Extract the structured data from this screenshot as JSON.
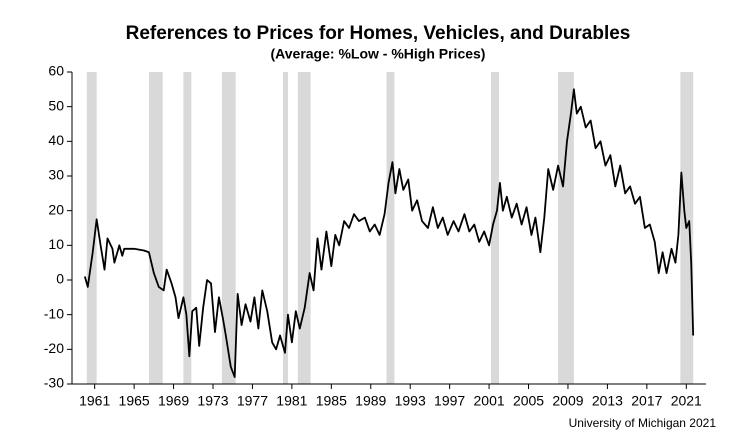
{
  "chart_data": {
    "type": "line",
    "title": "References to Prices for Homes, Vehicles, and Durables",
    "subtitle": "(Average:  %Low - %High Prices)",
    "source": "University of Michigan 2021",
    "xlim": [
      1958.7,
      2023
    ],
    "xticks": [
      1961,
      1965,
      1969,
      1973,
      1977,
      1981,
      1985,
      1989,
      1993,
      1997,
      2001,
      2005,
      2009,
      2013,
      2017,
      2021
    ],
    "ylim": [
      -30,
      60
    ],
    "yticks": [
      -30,
      -20,
      -10,
      0,
      10,
      20,
      30,
      40,
      50,
      60
    ],
    "grid": false,
    "shade_color": "#d9d9d9",
    "shaded_periods": [
      [
        1960.2,
        1961.2
      ],
      [
        1966.5,
        1967.9
      ],
      [
        1970.0,
        1970.8
      ],
      [
        1973.9,
        1975.3
      ],
      [
        1980.1,
        1980.6
      ],
      [
        1981.6,
        1982.9
      ],
      [
        1990.6,
        1991.4
      ],
      [
        2001.2,
        2002.0
      ],
      [
        2008.0,
        2009.6
      ],
      [
        2020.4,
        2021.7
      ]
    ],
    "series": [
      {
        "color": "#000000",
        "x": [
          1960.0,
          1960.3,
          1960.8,
          1961.2,
          1961.6,
          1962.0,
          1962.3,
          1962.8,
          1963.0,
          1963.5,
          1963.8,
          1964.0,
          1965.0,
          1966.0,
          1966.5,
          1967.0,
          1967.5,
          1968.0,
          1968.3,
          1968.8,
          1969.2,
          1969.5,
          1970.0,
          1970.3,
          1970.6,
          1970.9,
          1971.3,
          1971.6,
          1972.0,
          1972.4,
          1972.8,
          1973.2,
          1973.6,
          1974.0,
          1974.3,
          1974.8,
          1975.2,
          1975.5,
          1975.9,
          1976.3,
          1976.8,
          1977.2,
          1977.6,
          1978.0,
          1978.5,
          1979.0,
          1979.4,
          1979.8,
          1980.3,
          1980.6,
          1981.0,
          1981.4,
          1981.8,
          1982.3,
          1982.8,
          1983.2,
          1983.6,
          1984.0,
          1984.5,
          1985.0,
          1985.4,
          1985.8,
          1986.3,
          1986.8,
          1987.3,
          1987.8,
          1988.4,
          1988.9,
          1989.4,
          1989.9,
          1990.4,
          1990.8,
          1991.2,
          1991.5,
          1991.9,
          1992.3,
          1992.8,
          1993.2,
          1993.7,
          1994.2,
          1994.8,
          1995.3,
          1995.8,
          1996.3,
          1996.8,
          1997.4,
          1997.9,
          1998.5,
          1999.0,
          1999.5,
          2000.0,
          2000.5,
          2001.0,
          2001.4,
          2001.8,
          2002.1,
          2002.4,
          2002.8,
          2003.3,
          2003.8,
          2004.3,
          2004.8,
          2005.3,
          2005.7,
          2006.2,
          2006.6,
          2007.0,
          2007.5,
          2008.0,
          2008.5,
          2008.9,
          2009.3,
          2009.6,
          2009.9,
          2010.3,
          2010.8,
          2011.3,
          2011.8,
          2012.3,
          2012.8,
          2013.3,
          2013.8,
          2014.3,
          2014.8,
          2015.3,
          2015.8,
          2016.3,
          2016.8,
          2017.3,
          2017.8,
          2018.2,
          2018.6,
          2019.0,
          2019.5,
          2019.9,
          2020.2,
          2020.5,
          2020.8,
          2021.0,
          2021.3,
          2021.5,
          2021.7
        ],
        "values": [
          1,
          -2,
          8,
          17.5,
          10,
          3,
          12,
          9,
          5,
          10,
          7,
          9,
          9,
          8.5,
          8,
          2,
          -2,
          -3,
          3,
          -1,
          -5,
          -11,
          -5,
          -10,
          -22,
          -9,
          -8,
          -19,
          -8,
          0,
          -1,
          -15,
          -5,
          -11,
          -16,
          -25,
          -28,
          -4,
          -13,
          -7,
          -12,
          -5,
          -14,
          -3,
          -9,
          -18,
          -20,
          -16,
          -21,
          -10,
          -18,
          -9,
          -14,
          -8,
          2,
          -3,
          12,
          3,
          14,
          4,
          13,
          10,
          17,
          15,
          19,
          17,
          18,
          14,
          16,
          13,
          19,
          28,
          34,
          25,
          32,
          26,
          29,
          20,
          23,
          17,
          15,
          21,
          15,
          18,
          13,
          17,
          14,
          19,
          14,
          16,
          11,
          14,
          10,
          16,
          20,
          28,
          20,
          24,
          18,
          22,
          16,
          21,
          13,
          18,
          8,
          18,
          32,
          26,
          33,
          27,
          40,
          48,
          55,
          48,
          50,
          44,
          46,
          38,
          40,
          33,
          36,
          27,
          33,
          25,
          27,
          22,
          24,
          15,
          16,
          11,
          2,
          8,
          2,
          9,
          5,
          13,
          31,
          20,
          15,
          17,
          5,
          -16
        ]
      }
    ]
  }
}
